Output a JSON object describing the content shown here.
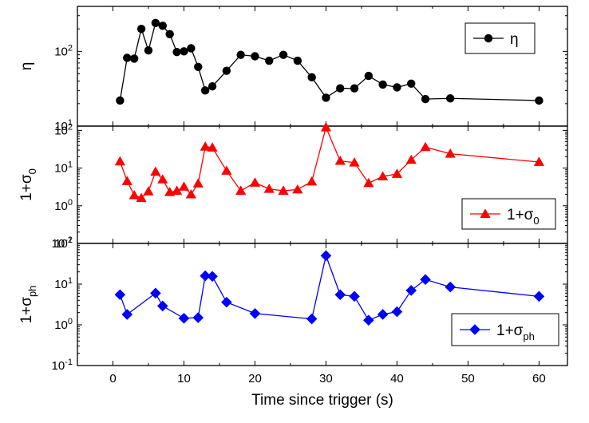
{
  "chart_data": [
    {
      "type": "line",
      "panel": "top",
      "ylabel": "η",
      "ylabel_main": "η",
      "ylabel_sub": "",
      "yscale": "log",
      "ylim": [
        10,
        400
      ],
      "yticks": [
        {
          "mant": "10",
          "exp": "1",
          "value": 10
        },
        {
          "mant": "10",
          "exp": "2",
          "value": 100
        }
      ],
      "xlim": [
        -5,
        64
      ],
      "legend": "top-right",
      "series": [
        {
          "name": "η",
          "name_main": "η",
          "name_sub": "",
          "color": "#000000",
          "marker": "circle",
          "x": [
            1,
            2,
            3,
            4,
            5,
            6,
            7,
            8,
            9,
            10,
            11,
            12,
            13,
            14,
            16,
            18,
            20,
            22,
            24,
            26,
            28,
            30,
            32,
            34,
            36,
            38,
            40,
            42,
            44,
            47.5,
            60
          ],
          "y": [
            22,
            82,
            80,
            200,
            103,
            240,
            220,
            170,
            98,
            100,
            110,
            62,
            30,
            34,
            55,
            90,
            86,
            75,
            90,
            75,
            45,
            24,
            32,
            32,
            47,
            36,
            33,
            37,
            23,
            23.5,
            22
          ]
        }
      ]
    },
    {
      "type": "line",
      "panel": "middle",
      "ylabel": "1+σ0",
      "ylabel_main": "1+σ",
      "ylabel_sub": "0",
      "yscale": "log",
      "ylim": [
        0.1,
        130
      ],
      "yticks": [
        {
          "mant": "10",
          "exp": "-1",
          "value": 0.1
        },
        {
          "mant": "10",
          "exp": "0",
          "value": 1
        },
        {
          "mant": "10",
          "exp": "1",
          "value": 10
        },
        {
          "mant": "10",
          "exp": "2",
          "value": 100
        }
      ],
      "xlim": [
        -5,
        64
      ],
      "legend": "bottom-right",
      "series": [
        {
          "name": "1+σ0",
          "name_main": "1+σ",
          "name_sub": "0",
          "color": "#ff0000",
          "marker": "triangle",
          "x": [
            1,
            2,
            3,
            4,
            5,
            6,
            7,
            8,
            9,
            10,
            11,
            12,
            13,
            14,
            16,
            18,
            20,
            22,
            24,
            26,
            28,
            30,
            32,
            34,
            36,
            38,
            40,
            42,
            44,
            47.5,
            60
          ],
          "y": [
            15,
            4.5,
            1.9,
            1.6,
            2.4,
            8,
            5,
            2.3,
            2.5,
            3.2,
            2.0,
            3.9,
            37,
            35,
            8.5,
            2.5,
            4.1,
            2.8,
            2.5,
            2.7,
            4.4,
            120,
            15.5,
            14,
            4,
            6,
            7,
            16.5,
            36,
            24,
            14.5
          ]
        }
      ]
    },
    {
      "type": "line",
      "panel": "bottom",
      "ylabel": "1+σph",
      "ylabel_main": "1+σ",
      "ylabel_sub": "ph",
      "xlabel": "Time since trigger (s)",
      "yscale": "log",
      "ylim": [
        0.1,
        100
      ],
      "yticks": [
        {
          "mant": "10",
          "exp": "-1",
          "value": 0.1
        },
        {
          "mant": "10",
          "exp": "0",
          "value": 1
        },
        {
          "mant": "10",
          "exp": "1",
          "value": 10
        },
        {
          "mant": "10",
          "exp": "2",
          "value": 100
        }
      ],
      "xlim": [
        -5,
        64
      ],
      "xticks": [
        0,
        10,
        20,
        30,
        40,
        50,
        60
      ],
      "legend": "bottom-right",
      "series": [
        {
          "name": "1+σph",
          "name_main": "1+σ",
          "name_sub": "ph",
          "color": "#0000ff",
          "marker": "diamond",
          "x": [
            1,
            2,
            6,
            7,
            10,
            12,
            13,
            14,
            16,
            20,
            28,
            30,
            32,
            34,
            36,
            38,
            40,
            42,
            44,
            47.5,
            60
          ],
          "y": [
            5.5,
            1.8,
            6,
            2.9,
            1.45,
            1.5,
            16,
            15.5,
            3.6,
            1.9,
            1.4,
            50,
            5.5,
            5,
            1.3,
            1.8,
            2.1,
            7,
            13,
            8.5,
            5
          ]
        }
      ]
    }
  ]
}
